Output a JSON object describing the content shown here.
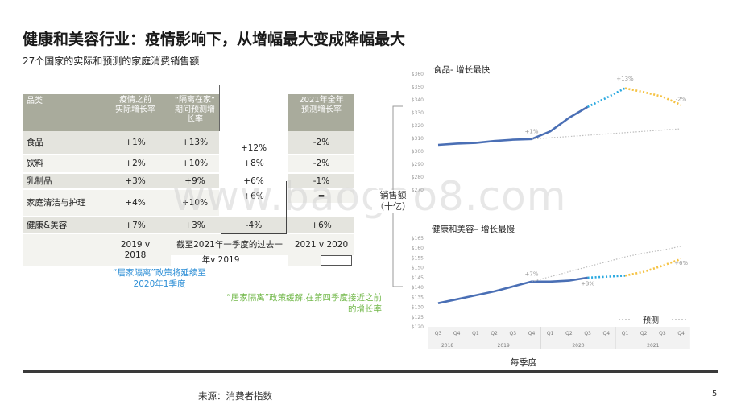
{
  "title": "健康和美容行业：疫情影响下，从增幅最大变成降幅最大",
  "subtitle": "27个国家的实际和预测的家庭消费销售额",
  "table": {
    "headers": [
      "品类",
      "疫情之前\n实际增长率",
      "“隔离在家”\n期间预测增\n长率",
      "",
      "2021年全年\n预测增长率"
    ],
    "rows": [
      {
        "category": "食品",
        "pre": "+1%",
        "home": "+13%",
        "q1": "+12%",
        "full": "-2%"
      },
      {
        "category": "饮料",
        "pre": "+2%",
        "home": "+10%",
        "q1": "+8%",
        "full": "-2%"
      },
      {
        "category": "乳制品",
        "pre": "+3%",
        "home": "+9%",
        "q1": "+6%",
        "full": "-1%"
      },
      {
        "category": "家庭清洁与护理",
        "pre": "+4%",
        "home": "+10%",
        "q1": "+6%",
        "full": "="
      },
      {
        "category": "健康&美容",
        "pre": "+7%",
        "home": "+3%",
        "q1": "-4%",
        "full": "+6%"
      }
    ],
    "footer": {
      "pre": "2019 v\n2018",
      "q1_line1": "截至2021年一季度的过去一",
      "q1_line2": "年v 2019",
      "full": "2021 v 2020"
    }
  },
  "callouts": {
    "blue": "“居家隔离”政策将延续至\n2020年1季度",
    "green": "“居家隔离”政策缓解,在第四季度接近之前\n的增长率"
  },
  "axis_label": "销售额\n（十亿）",
  "x_title": "每季度",
  "forecast_label": "预测",
  "source": "来源：消费者指数",
  "page_number": "5",
  "watermark": "www.baogao8.com",
  "colors": {
    "actual": "#4a6fb5",
    "forecast_blue": "#2aa9e0",
    "forecast_yellow": "#f5c242",
    "trend": "#bdbdbd",
    "header_bg": "#a9ab9c"
  },
  "chart_data": [
    {
      "type": "line",
      "title": "食品- 增长最快",
      "x": [
        "Q3 2018",
        "Q4 2018",
        "Q1 2019",
        "Q2 2019",
        "Q3 2019",
        "Q4 2019",
        "Q1 2020",
        "Q2 2020",
        "Q3 2020",
        "Q4 2020",
        "Q1 2021",
        "Q2 2021",
        "Q3 2021",
        "Q4 2021"
      ],
      "ylim": [
        270,
        360
      ],
      "yticks": [
        "$270",
        "$280",
        "$290",
        "$300",
        "$310",
        "$320",
        "$330",
        "$340",
        "$350",
        "$360"
      ],
      "series": [
        {
          "kind": "actual",
          "values": [
            305,
            306,
            306.5,
            308,
            309,
            309.5,
            315.5,
            326,
            334.5,
            null,
            null,
            null,
            null,
            null
          ]
        },
        {
          "kind": "forecast",
          "values": [
            null,
            null,
            null,
            null,
            null,
            null,
            null,
            null,
            334.5,
            341.5,
            349,
            346,
            342.5,
            336
          ]
        },
        {
          "kind": "trend",
          "values": [
            null,
            null,
            null,
            null,
            null,
            309.5,
            310.5,
            311.5,
            312.5,
            313.5,
            314.5,
            315.5,
            316.5,
            317.5
          ]
        }
      ],
      "annotations": [
        {
          "label": "+1%",
          "x": "Q4 2019",
          "y": 314
        },
        {
          "label": "+13%",
          "x": "Q1 2021",
          "y": 355
        },
        {
          "label": "-2%",
          "x": "Q4 2021",
          "y": 339
        }
      ]
    },
    {
      "type": "line",
      "title": "健康和美容– 增长最慢",
      "x": [
        "Q3 2018",
        "Q4 2018",
        "Q1 2019",
        "Q2 2019",
        "Q3 2019",
        "Q4 2019",
        "Q1 2020",
        "Q2 2020",
        "Q3 2020",
        "Q4 2020",
        "Q1 2021",
        "Q2 2021",
        "Q3 2021",
        "Q4 2021"
      ],
      "ylim": [
        120,
        165
      ],
      "yticks": [
        "$120",
        "$125",
        "$130",
        "$135",
        "$140",
        "$145",
        "$150",
        "$155",
        "$160",
        "$165"
      ],
      "series": [
        {
          "kind": "actual",
          "values": [
            132,
            134,
            136,
            138,
            140.5,
            143,
            143,
            143.5,
            145,
            null,
            null,
            null,
            null,
            null
          ]
        },
        {
          "kind": "forecast",
          "values": [
            null,
            null,
            null,
            null,
            null,
            null,
            null,
            null,
            145,
            145.5,
            146,
            148,
            151,
            154.5
          ]
        },
        {
          "kind": "trend",
          "values": [
            null,
            null,
            null,
            null,
            null,
            143,
            145.5,
            148,
            150.5,
            153,
            155.5,
            157.5,
            159,
            161
          ]
        }
      ],
      "annotations": [
        {
          "label": "+7%",
          "x": "Q4 2019",
          "y": 146
        },
        {
          "label": "+3%",
          "x": "Q3 2020",
          "y": 141
        },
        {
          "label": "+6%",
          "x": "Q4 2021",
          "y": 151.5
        }
      ]
    }
  ],
  "x_axis": {
    "quarters": [
      "Q3",
      "Q4",
      "Q1",
      "Q2",
      "Q3",
      "Q4",
      "Q1",
      "Q2",
      "Q3",
      "Q4",
      "Q1",
      "Q2",
      "Q3",
      "Q4"
    ],
    "years": [
      "2018",
      "2019",
      "2020",
      "2021"
    ]
  }
}
